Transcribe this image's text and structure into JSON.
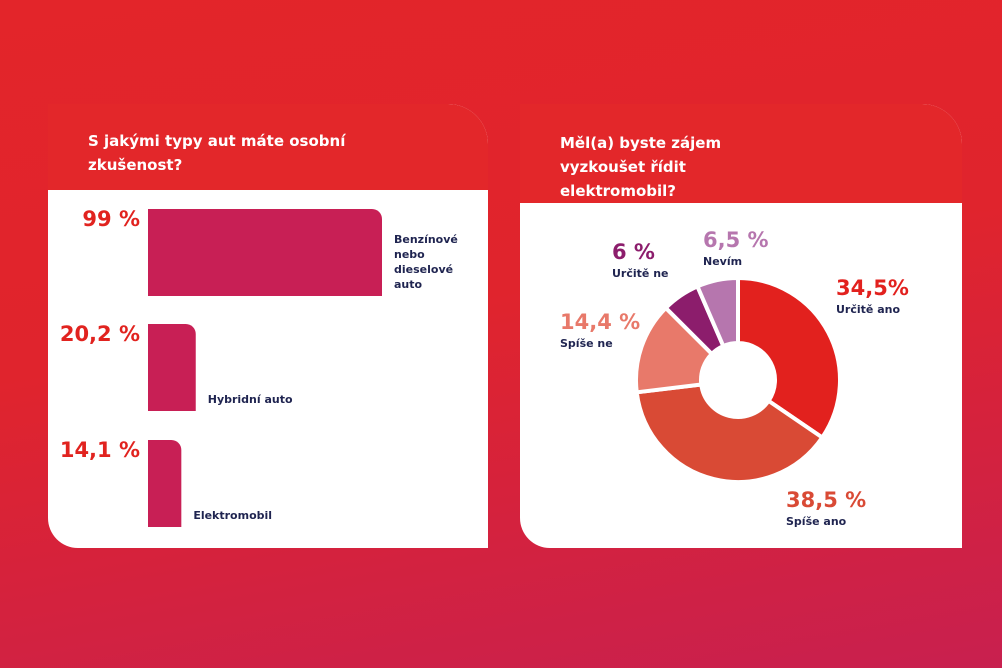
{
  "chart_data": [
    {
      "type": "hbar",
      "title": "S jakými typy aut máte osobní zkušenost?",
      "categories": [
        "Benzínové nebo dieselové auto",
        "Hybridní auto",
        "Elektromobil"
      ],
      "values": [
        99,
        20.2,
        14.1
      ],
      "value_labels": [
        "99 %",
        "20,2 %",
        "14,1 %"
      ],
      "color": "#c81f55"
    },
    {
      "type": "donut",
      "title": "Měl(a) byste zájem vyzkoušet řídit elektromobil?",
      "categories": [
        "Určitě ano",
        "Spíše ano",
        "Spíše ne",
        "Určitě ne",
        "Nevím"
      ],
      "values": [
        34.5,
        38.5,
        14.4,
        6,
        6.5
      ],
      "value_labels": [
        "34,5%",
        "38,5 %",
        "14,4 %",
        "6 %",
        "6,5 %"
      ],
      "colors": [
        "#e2211e",
        "#d94a35",
        "#e8796a",
        "#8c1d6c",
        "#b676ae"
      ]
    }
  ]
}
